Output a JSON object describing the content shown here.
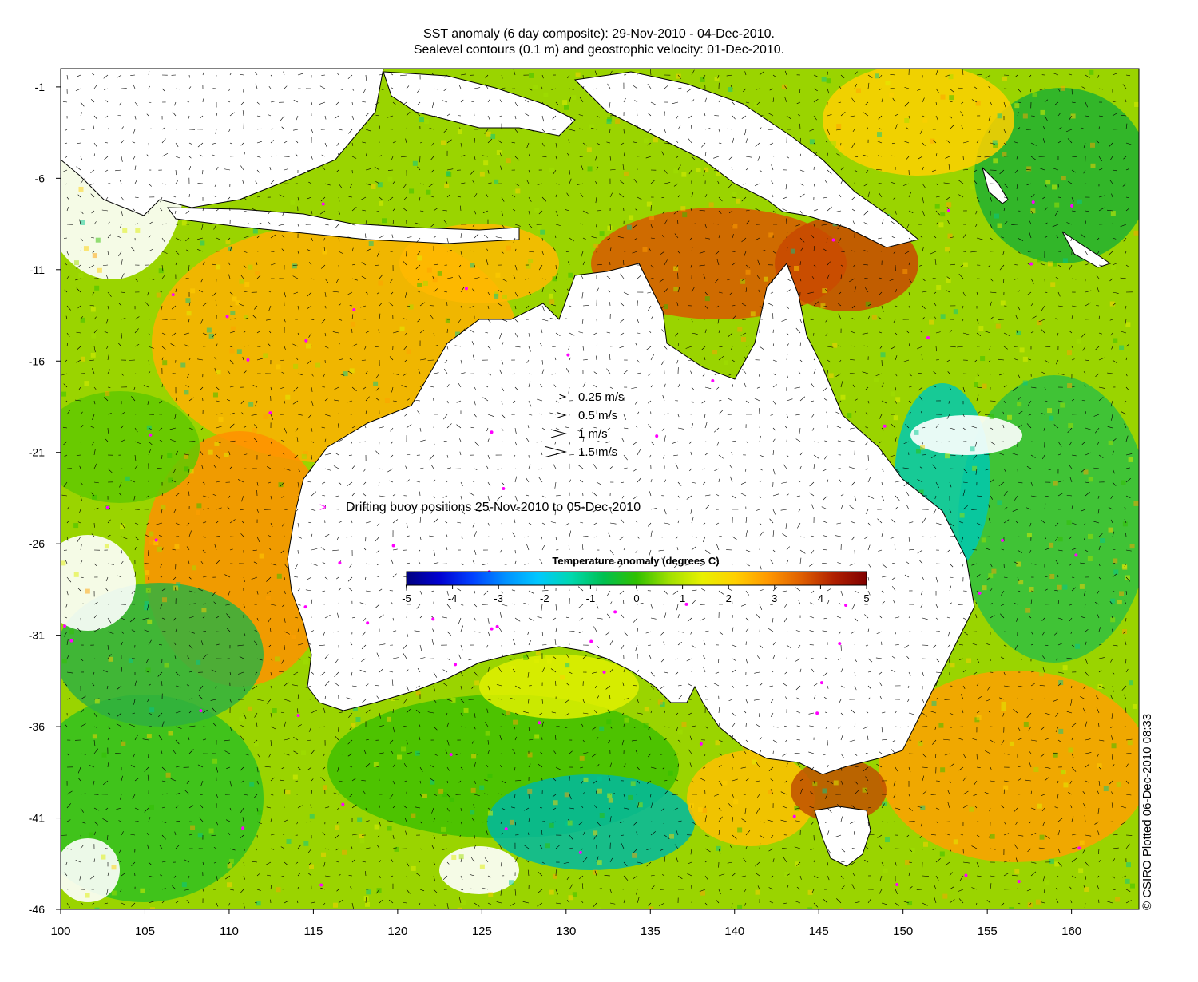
{
  "title_line1": "SST anomaly (6 day composite): 29-Nov-2010 - 04-Dec-2010.",
  "title_line2": "Sealevel contours (0.1 m) and geostrophic velocity: 01-Dec-2010.",
  "y_ticks": [
    "-1",
    "-6",
    "-11",
    "-16",
    "-21",
    "-26",
    "-31",
    "-36",
    "-41",
    "-46"
  ],
  "x_ticks": [
    "100",
    "105",
    "110",
    "115",
    "120",
    "125",
    "130",
    "135",
    "140",
    "145",
    "150",
    "155",
    "160"
  ],
  "velocity_legend": [
    {
      "label": "0.25 m/s",
      "speed": 0.25
    },
    {
      "label": "0.5 m/s",
      "speed": 0.5
    },
    {
      "label": "1 m/s",
      "speed": 1
    },
    {
      "label": "1.5 m/s",
      "speed": 1.5
    }
  ],
  "buoy_legend": "Drifting buoy positions 25-Nov-2010 to 05-Dec-2010",
  "buoy_color": "#ff00ff",
  "colorbar": {
    "title": "Temperature anomaly (degrees C)",
    "ticks": [
      "-5",
      "-4",
      "-3",
      "-2",
      "-1",
      "0",
      "1",
      "2",
      "3",
      "4",
      "5"
    ],
    "range": [
      -5,
      5
    ],
    "colors": [
      "#000080",
      "#0000d0",
      "#0040ff",
      "#0090ff",
      "#00c8ff",
      "#00d8b0",
      "#00c050",
      "#30c000",
      "#a0e000",
      "#e8f000",
      "#ffd000",
      "#ff9800",
      "#e06000",
      "#b02000",
      "#800000"
    ]
  },
  "credit": "© CSIRO Plotted 06-Dec-2010 08:33",
  "chart_data": {
    "type": "heatmap",
    "title": "SST anomaly (6 day composite): 29-Nov-2010 - 04-Dec-2010.",
    "subtitle": "Sealevel contours (0.1 m) and geostrophic velocity: 01-Dec-2010.",
    "xlim": [
      100,
      164
    ],
    "ylim": [
      -46,
      0
    ],
    "colorbar_range": [
      -5,
      5
    ],
    "colorbar_label": "Temperature anomaly (degrees C)"
  }
}
